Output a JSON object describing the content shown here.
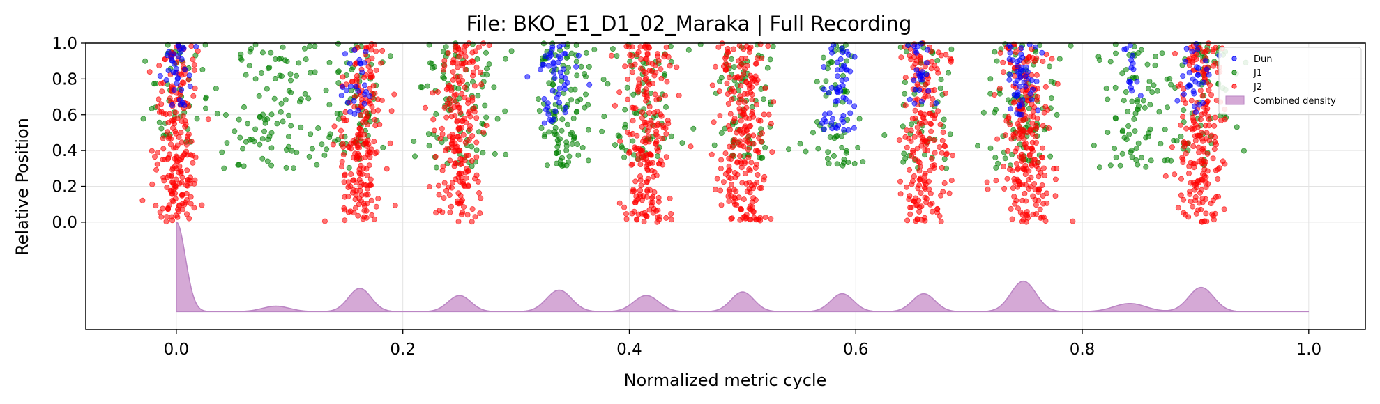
{
  "chart_data": {
    "type": "scatter",
    "title": "File: BKO_E1_D1_02_Maraka | Full Recording",
    "xlabel": "Normalized metric cycle",
    "ylabel": "Relative Position",
    "xlim": [
      -0.08,
      1.05
    ],
    "ylim": [
      -0.6,
      1.0
    ],
    "x_ticks": [
      "0.0",
      "0.2",
      "0.4",
      "0.6",
      "0.8",
      "1.0"
    ],
    "y_ticks": [
      "0.0",
      "0.2",
      "0.4",
      "0.6",
      "0.8",
      "1.0"
    ],
    "grid": true,
    "legend_position": "top-right",
    "series": [
      {
        "name": "Dun",
        "color": "#0000ff",
        "clusters": [
          {
            "x": 0.0,
            "spread": 0.007,
            "y": [
              0.65,
              1.0
            ],
            "n": 35
          },
          {
            "x": 0.16,
            "spread": 0.008,
            "y": [
              0.6,
              1.0
            ],
            "n": 25
          },
          {
            "x": 0.335,
            "spread": 0.009,
            "y": [
              0.55,
              1.0
            ],
            "n": 50
          },
          {
            "x": 0.585,
            "spread": 0.009,
            "y": [
              0.5,
              1.0
            ],
            "n": 55
          },
          {
            "x": 0.655,
            "spread": 0.007,
            "y": [
              0.6,
              1.0
            ],
            "n": 25
          },
          {
            "x": 0.745,
            "spread": 0.008,
            "y": [
              0.6,
              1.0
            ],
            "n": 50
          },
          {
            "x": 0.845,
            "spread": 0.005,
            "y": [
              0.7,
              1.0
            ],
            "n": 15
          },
          {
            "x": 0.9,
            "spread": 0.007,
            "y": [
              0.6,
              1.0
            ],
            "n": 30
          }
        ]
      },
      {
        "name": "J1",
        "color": "#008000",
        "clusters": [
          {
            "x": 0.0,
            "spread": 0.016,
            "y": [
              0.4,
              1.0
            ],
            "n": 45
          },
          {
            "x": 0.09,
            "spread": 0.025,
            "y": [
              0.3,
              1.0
            ],
            "n": 110
          },
          {
            "x": 0.16,
            "spread": 0.012,
            "y": [
              0.3,
              1.0
            ],
            "n": 55
          },
          {
            "x": 0.25,
            "spread": 0.02,
            "y": [
              0.3,
              1.0
            ],
            "n": 90
          },
          {
            "x": 0.34,
            "spread": 0.012,
            "y": [
              0.3,
              1.0
            ],
            "n": 110
          },
          {
            "x": 0.415,
            "spread": 0.016,
            "y": [
              0.35,
              1.0
            ],
            "n": 70
          },
          {
            "x": 0.5,
            "spread": 0.015,
            "y": [
              0.35,
              1.0
            ],
            "n": 70
          },
          {
            "x": 0.58,
            "spread": 0.012,
            "y": [
              0.3,
              1.0
            ],
            "n": 60
          },
          {
            "x": 0.66,
            "spread": 0.015,
            "y": [
              0.3,
              1.0
            ],
            "n": 50
          },
          {
            "x": 0.745,
            "spread": 0.018,
            "y": [
              0.3,
              1.0
            ],
            "n": 90
          },
          {
            "x": 0.845,
            "spread": 0.02,
            "y": [
              0.3,
              1.0
            ],
            "n": 85
          },
          {
            "x": 0.905,
            "spread": 0.015,
            "y": [
              0.3,
              1.0
            ],
            "n": 60
          }
        ]
      },
      {
        "name": "J2",
        "color": "#ff0000",
        "clusters": [
          {
            "x": 0.0,
            "spread": 0.009,
            "y": [
              0.0,
              1.0
            ],
            "n": 210
          },
          {
            "x": 0.165,
            "spread": 0.01,
            "y": [
              0.0,
              1.0
            ],
            "n": 200
          },
          {
            "x": 0.25,
            "spread": 0.01,
            "y": [
              0.0,
              1.0
            ],
            "n": 200
          },
          {
            "x": 0.415,
            "spread": 0.011,
            "y": [
              0.0,
              1.0
            ],
            "n": 220
          },
          {
            "x": 0.5,
            "spread": 0.011,
            "y": [
              0.0,
              1.0
            ],
            "n": 230
          },
          {
            "x": 0.66,
            "spread": 0.011,
            "y": [
              0.0,
              1.0
            ],
            "n": 190
          },
          {
            "x": 0.75,
            "spread": 0.011,
            "y": [
              0.0,
              1.0
            ],
            "n": 230
          },
          {
            "x": 0.905,
            "spread": 0.01,
            "y": [
              0.0,
              1.0
            ],
            "n": 200
          }
        ]
      }
    ],
    "density": {
      "name": "Combined density",
      "color": "#9b3fa6",
      "baseline": -0.5,
      "peak_top": 0.0,
      "peaks": [
        {
          "x": 0.0,
          "height": 1.0,
          "width": 0.008
        },
        {
          "x": 0.088,
          "height": 0.06,
          "width": 0.012
        },
        {
          "x": 0.162,
          "height": 0.26,
          "width": 0.01
        },
        {
          "x": 0.25,
          "height": 0.18,
          "width": 0.01
        },
        {
          "x": 0.338,
          "height": 0.24,
          "width": 0.011
        },
        {
          "x": 0.415,
          "height": 0.18,
          "width": 0.011
        },
        {
          "x": 0.5,
          "height": 0.22,
          "width": 0.01
        },
        {
          "x": 0.588,
          "height": 0.2,
          "width": 0.01
        },
        {
          "x": 0.66,
          "height": 0.2,
          "width": 0.01
        },
        {
          "x": 0.748,
          "height": 0.34,
          "width": 0.011
        },
        {
          "x": 0.842,
          "height": 0.09,
          "width": 0.014
        },
        {
          "x": 0.905,
          "height": 0.27,
          "width": 0.011
        }
      ]
    }
  }
}
